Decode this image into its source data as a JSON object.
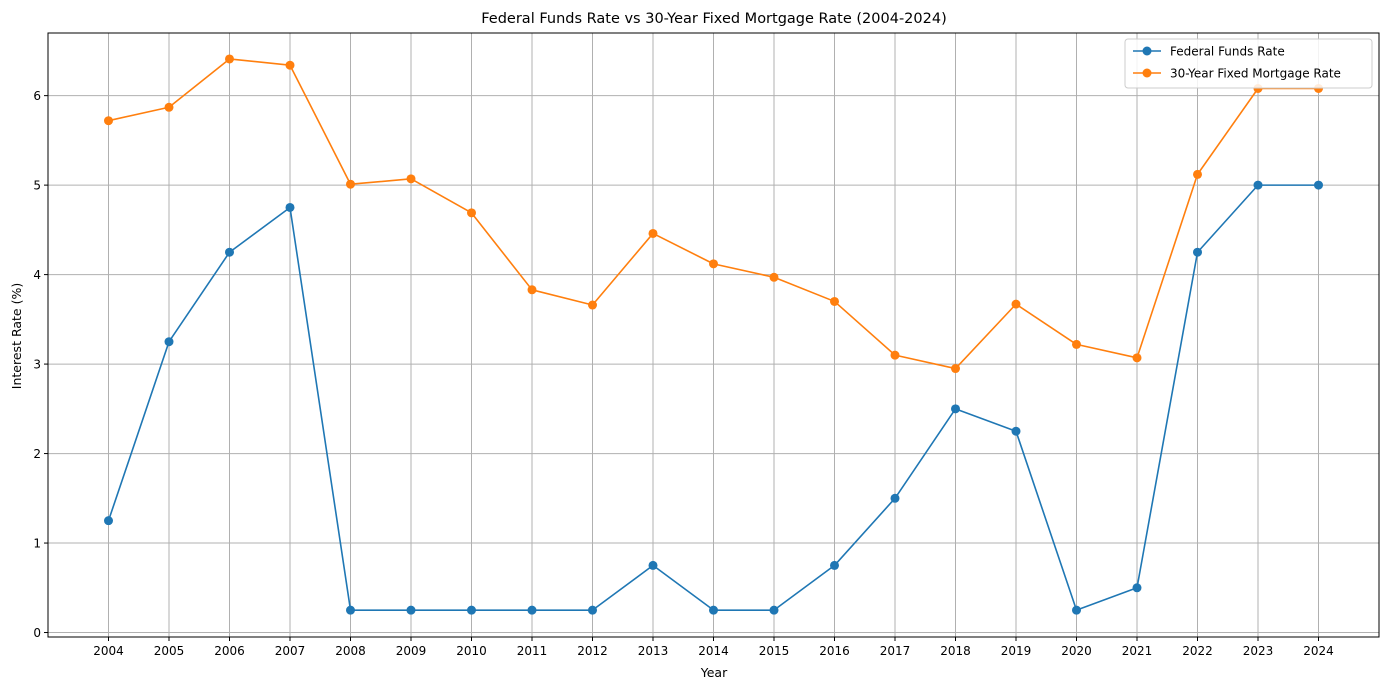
{
  "chart_data": {
    "type": "line",
    "title": "Federal Funds Rate vs 30-Year Fixed Mortgage Rate (2004-2024)",
    "xlabel": "Year",
    "ylabel": "Interest Rate (%)",
    "x": [
      2004,
      2005,
      2006,
      2007,
      2008,
      2009,
      2010,
      2011,
      2012,
      2013,
      2014,
      2015,
      2016,
      2017,
      2018,
      2019,
      2020,
      2021,
      2022,
      2023,
      2024
    ],
    "xlim": [
      2003,
      2025
    ],
    "ylim": [
      -0.05,
      6.7
    ],
    "y_ticks": [
      0,
      1,
      2,
      3,
      4,
      5,
      6
    ],
    "grid": true,
    "legend_position": "top-right",
    "series": [
      {
        "name": "Federal Funds Rate",
        "color": "#1f77b4",
        "marker": "circle",
        "values": [
          1.25,
          3.25,
          4.25,
          4.75,
          0.25,
          0.25,
          0.25,
          0.25,
          0.25,
          0.75,
          0.25,
          0.25,
          0.75,
          1.5,
          2.5,
          2.25,
          0.25,
          0.5,
          4.25,
          5.0,
          5.0
        ]
      },
      {
        "name": "30-Year Fixed Mortgage Rate",
        "color": "#ff7f0e",
        "marker": "circle",
        "values": [
          5.72,
          5.87,
          6.41,
          6.34,
          5.01,
          5.07,
          4.69,
          3.83,
          3.66,
          4.46,
          4.12,
          3.97,
          3.7,
          3.1,
          2.95,
          3.67,
          3.22,
          3.07,
          5.12,
          6.08,
          6.08
        ]
      }
    ]
  }
}
